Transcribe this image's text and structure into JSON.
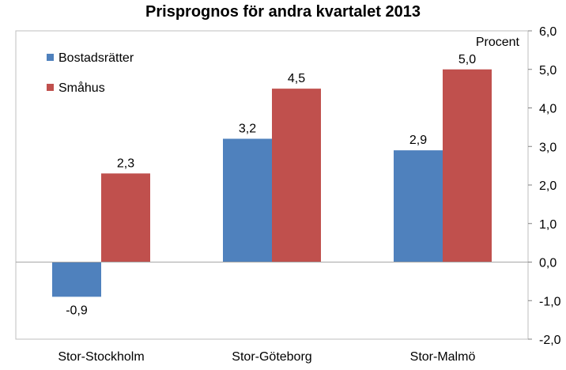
{
  "chart_data": {
    "type": "bar",
    "title": "Prisprognos för andra kvartalet 2013",
    "ylabel": "Procent",
    "xlabel": "",
    "categories": [
      "Stor-Stockholm",
      "Stor-Göteborg",
      "Stor-Malmö"
    ],
    "series": [
      {
        "name": "Bostadsrätter",
        "color": "#4f81bd",
        "values": [
          -0.9,
          3.2,
          2.9
        ],
        "labels": [
          "-0,9",
          "3,2",
          "2,9"
        ]
      },
      {
        "name": "Småhus",
        "color": "#c0504d",
        "values": [
          2.3,
          4.5,
          5.0
        ],
        "labels": [
          "2,3",
          "4,5",
          "5,0"
        ]
      }
    ],
    "ylim": [
      -2.0,
      6.0
    ],
    "yticks": [
      6.0,
      5.0,
      4.0,
      3.0,
      2.0,
      1.0,
      0.0,
      -1.0,
      -2.0
    ],
    "ytick_labels": [
      "6,0",
      "5,0",
      "4,0",
      "3,0",
      "2,0",
      "1,0",
      "0,0",
      "-1,0",
      "-2,0"
    ],
    "y_axis_side": "right",
    "legend_position": "top-left",
    "grid": false
  }
}
